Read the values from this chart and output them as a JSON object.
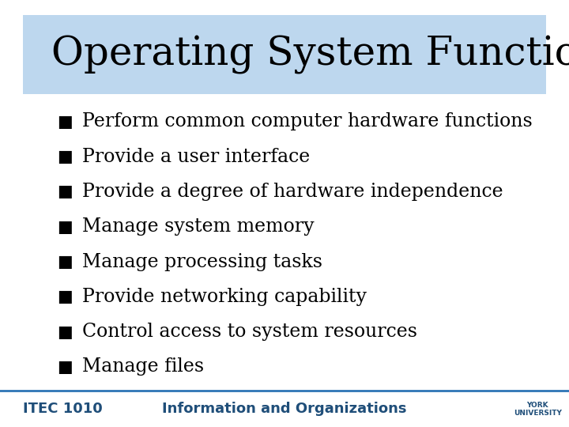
{
  "title": "Operating System Functions",
  "title_bg_color": "#bdd7ee",
  "title_text_color": "#000000",
  "title_fontsize": 36,
  "slide_bg_color": "#ffffff",
  "bullet_items": [
    "Perform common computer hardware functions",
    "Provide a user interface",
    "Provide a degree of hardware independence",
    "Manage system memory",
    "Manage processing tasks",
    "Provide networking capability",
    "Control access to system resources",
    "Manage files"
  ],
  "bullet_fontsize": 17,
  "bullet_color": "#000000",
  "bullet_symbol": "■",
  "footer_left": "ITEC 1010",
  "footer_center": "Information and Organizations",
  "footer_color": "#1f4e79",
  "footer_line_color": "#2e74b5",
  "footer_fontsize": 13
}
